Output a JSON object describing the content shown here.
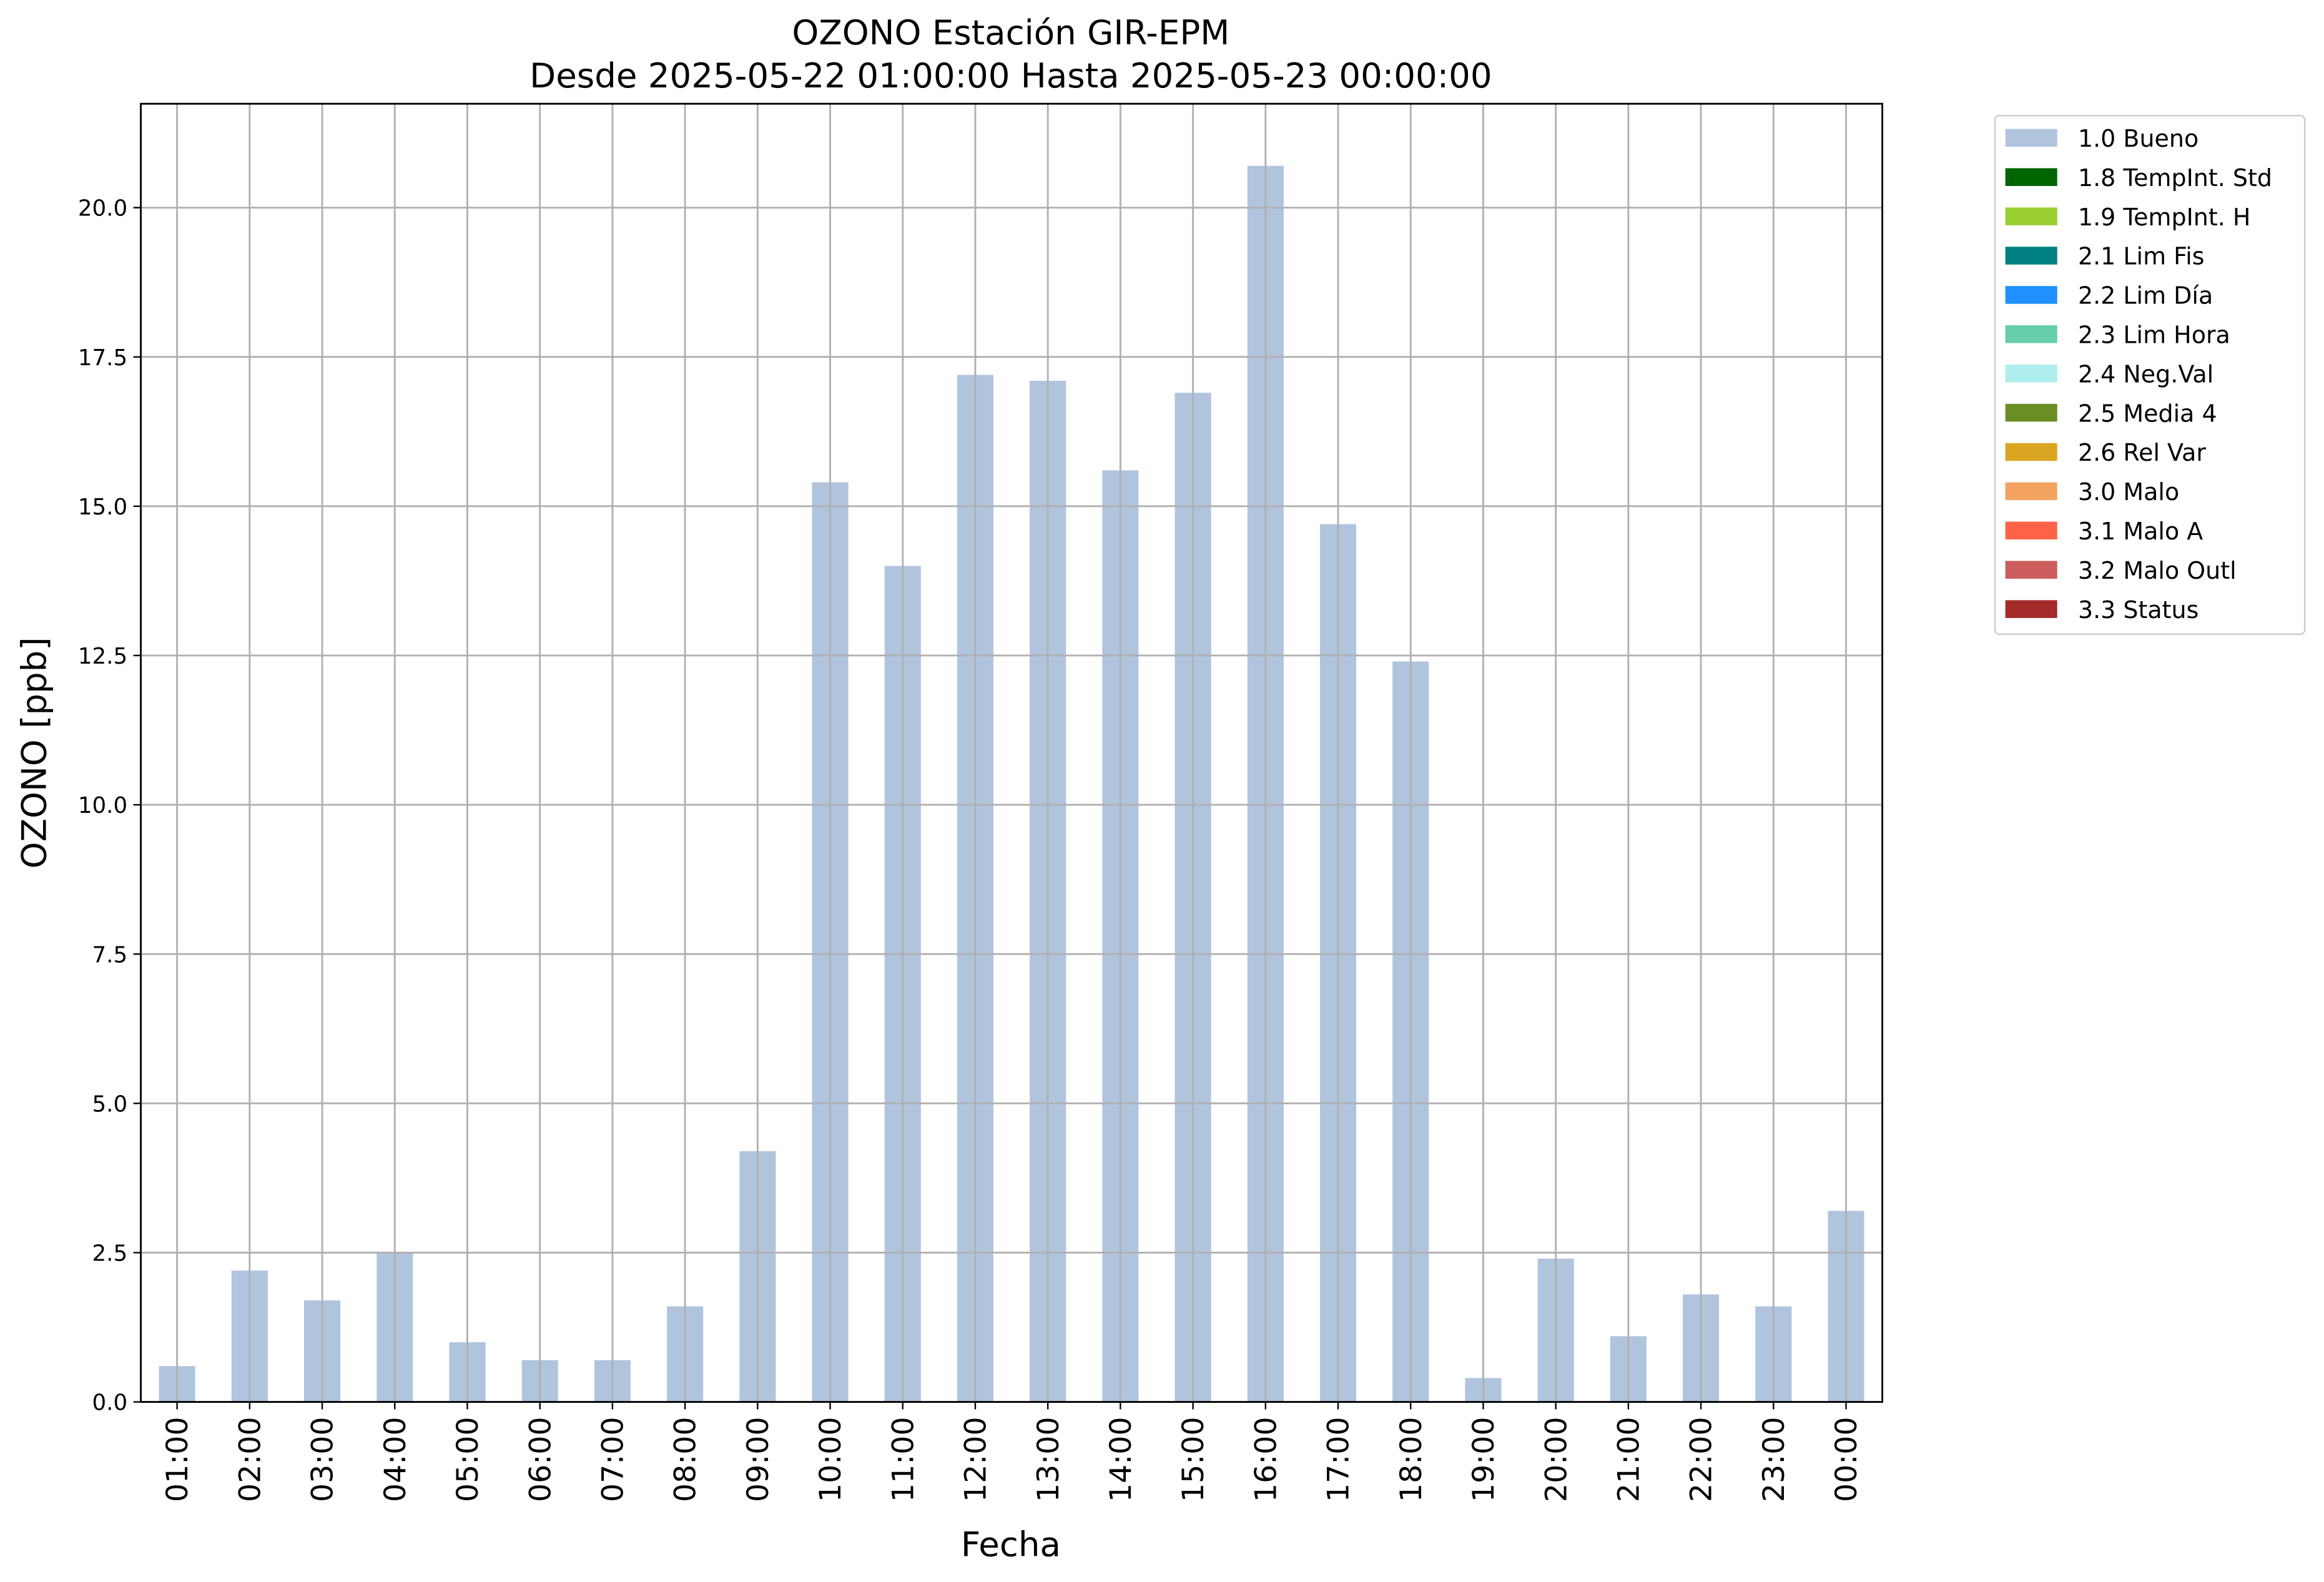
{
  "chart_data": {
    "type": "stacked_bar",
    "title": "OZONO Estación GIR-EPM",
    "subtitle": "Desde 2025-05-22 01:00:00 Hasta 2025-05-23 00:00:00",
    "x_label": "Fecha",
    "y_label": "OZONO [ppb]",
    "categories": [
      "01:00",
      "02:00",
      "03:00",
      "04:00",
      "05:00",
      "06:00",
      "07:00",
      "08:00",
      "09:00",
      "10:00",
      "11:00",
      "12:00",
      "13:00",
      "14:00",
      "15:00",
      "16:00",
      "17:00",
      "18:00",
      "19:00",
      "20:00",
      "21:00",
      "22:00",
      "23:00",
      "00:00"
    ],
    "ylim": [
      0,
      21.74
    ],
    "yticks": [
      {
        "value": 0,
        "label": "0.0"
      },
      2.5,
      {
        "value": 5,
        "label": "5.0"
      },
      7.5,
      {
        "value": 10,
        "label": "10.0"
      },
      12.5,
      {
        "value": 15,
        "label": "15.0"
      },
      17.5,
      {
        "value": 20,
        "label": "20.0"
      }
    ],
    "grid": true,
    "legend_position": "outside-right",
    "series": [
      {
        "name": "1.0 Bueno",
        "color": "#b0c4de",
        "values": [
          0.6,
          2.2,
          1.7,
          2.5,
          1.0,
          0.7,
          0.7,
          1.6,
          4.2,
          15.4,
          14.0,
          17.2,
          17.1,
          15.6,
          16.9,
          20.7,
          14.7,
          12.4,
          0.4,
          2.4,
          1.1,
          1.8,
          1.6,
          3.2
        ]
      },
      {
        "name": "1.8 TempInt. Std",
        "color": "#006400",
        "values": [
          0,
          0,
          0,
          0,
          0,
          0,
          0,
          0,
          0,
          0,
          0,
          0,
          0,
          0,
          0,
          0,
          0,
          0,
          0,
          0,
          0,
          0,
          0,
          0
        ]
      },
      {
        "name": "1.9 TempInt. H",
        "color": "#9acd32",
        "values": [
          0,
          0,
          0,
          0,
          0,
          0,
          0,
          0,
          0,
          0,
          0,
          0,
          0,
          0,
          0,
          0,
          0,
          0,
          0,
          0,
          0,
          0,
          0,
          0
        ]
      },
      {
        "name": "2.1 Lim Fis",
        "color": "#008080",
        "values": [
          0,
          0,
          0,
          0,
          0,
          0,
          0,
          0,
          0,
          0,
          0,
          0,
          0,
          0,
          0,
          0,
          0,
          0,
          0,
          0,
          0,
          0,
          0,
          0
        ]
      },
      {
        "name": "2.2 Lim Día",
        "color": "#1e90ff",
        "values": [
          0,
          0,
          0,
          0,
          0,
          0,
          0,
          0,
          0,
          0,
          0,
          0,
          0,
          0,
          0,
          0,
          0,
          0,
          0,
          0,
          0,
          0,
          0,
          0
        ]
      },
      {
        "name": "2.3 Lim Hora",
        "color": "#66cdaa",
        "values": [
          0,
          0,
          0,
          0,
          0,
          0,
          0,
          0,
          0,
          0,
          0,
          0,
          0,
          0,
          0,
          0,
          0,
          0,
          0,
          0,
          0,
          0,
          0,
          0
        ]
      },
      {
        "name": "2.4 Neg.Val",
        "color": "#afeeee",
        "values": [
          0,
          0,
          0,
          0,
          0,
          0,
          0,
          0,
          0,
          0,
          0,
          0,
          0,
          0,
          0,
          0,
          0,
          0,
          0,
          0,
          0,
          0,
          0,
          0
        ]
      },
      {
        "name": "2.5 Media 4",
        "color": "#6b8e23",
        "values": [
          0,
          0,
          0,
          0,
          0,
          0,
          0,
          0,
          0,
          0,
          0,
          0,
          0,
          0,
          0,
          0,
          0,
          0,
          0,
          0,
          0,
          0,
          0,
          0
        ]
      },
      {
        "name": "2.6 Rel Var",
        "color": "#daa520",
        "values": [
          0,
          0,
          0,
          0,
          0,
          0,
          0,
          0,
          0,
          0,
          0,
          0,
          0,
          0,
          0,
          0,
          0,
          0,
          0,
          0,
          0,
          0,
          0,
          0
        ]
      },
      {
        "name": "3.0 Malo",
        "color": "#f4a460",
        "values": [
          0,
          0,
          0,
          0,
          0,
          0,
          0,
          0,
          0,
          0,
          0,
          0,
          0,
          0,
          0,
          0,
          0,
          0,
          0,
          0,
          0,
          0,
          0,
          0
        ]
      },
      {
        "name": "3.1 Malo A",
        "color": "#ff6347",
        "values": [
          0,
          0,
          0,
          0,
          0,
          0,
          0,
          0,
          0,
          0,
          0,
          0,
          0,
          0,
          0,
          0,
          0,
          0,
          0,
          0,
          0,
          0,
          0,
          0
        ]
      },
      {
        "name": "3.2 Malo Outl",
        "color": "#cd5c5c",
        "values": [
          0,
          0,
          0,
          0,
          0,
          0,
          0,
          0,
          0,
          0,
          0,
          0,
          0,
          0,
          0,
          0,
          0,
          0,
          0,
          0,
          0,
          0,
          0,
          0
        ]
      },
      {
        "name": "3.3 Status",
        "color": "#a52a2a",
        "values": [
          0,
          0,
          0,
          0,
          0,
          0,
          0,
          0,
          0,
          0,
          0,
          0,
          0,
          0,
          0,
          0,
          0,
          0,
          0,
          0,
          0,
          0,
          0,
          0
        ]
      }
    ]
  }
}
